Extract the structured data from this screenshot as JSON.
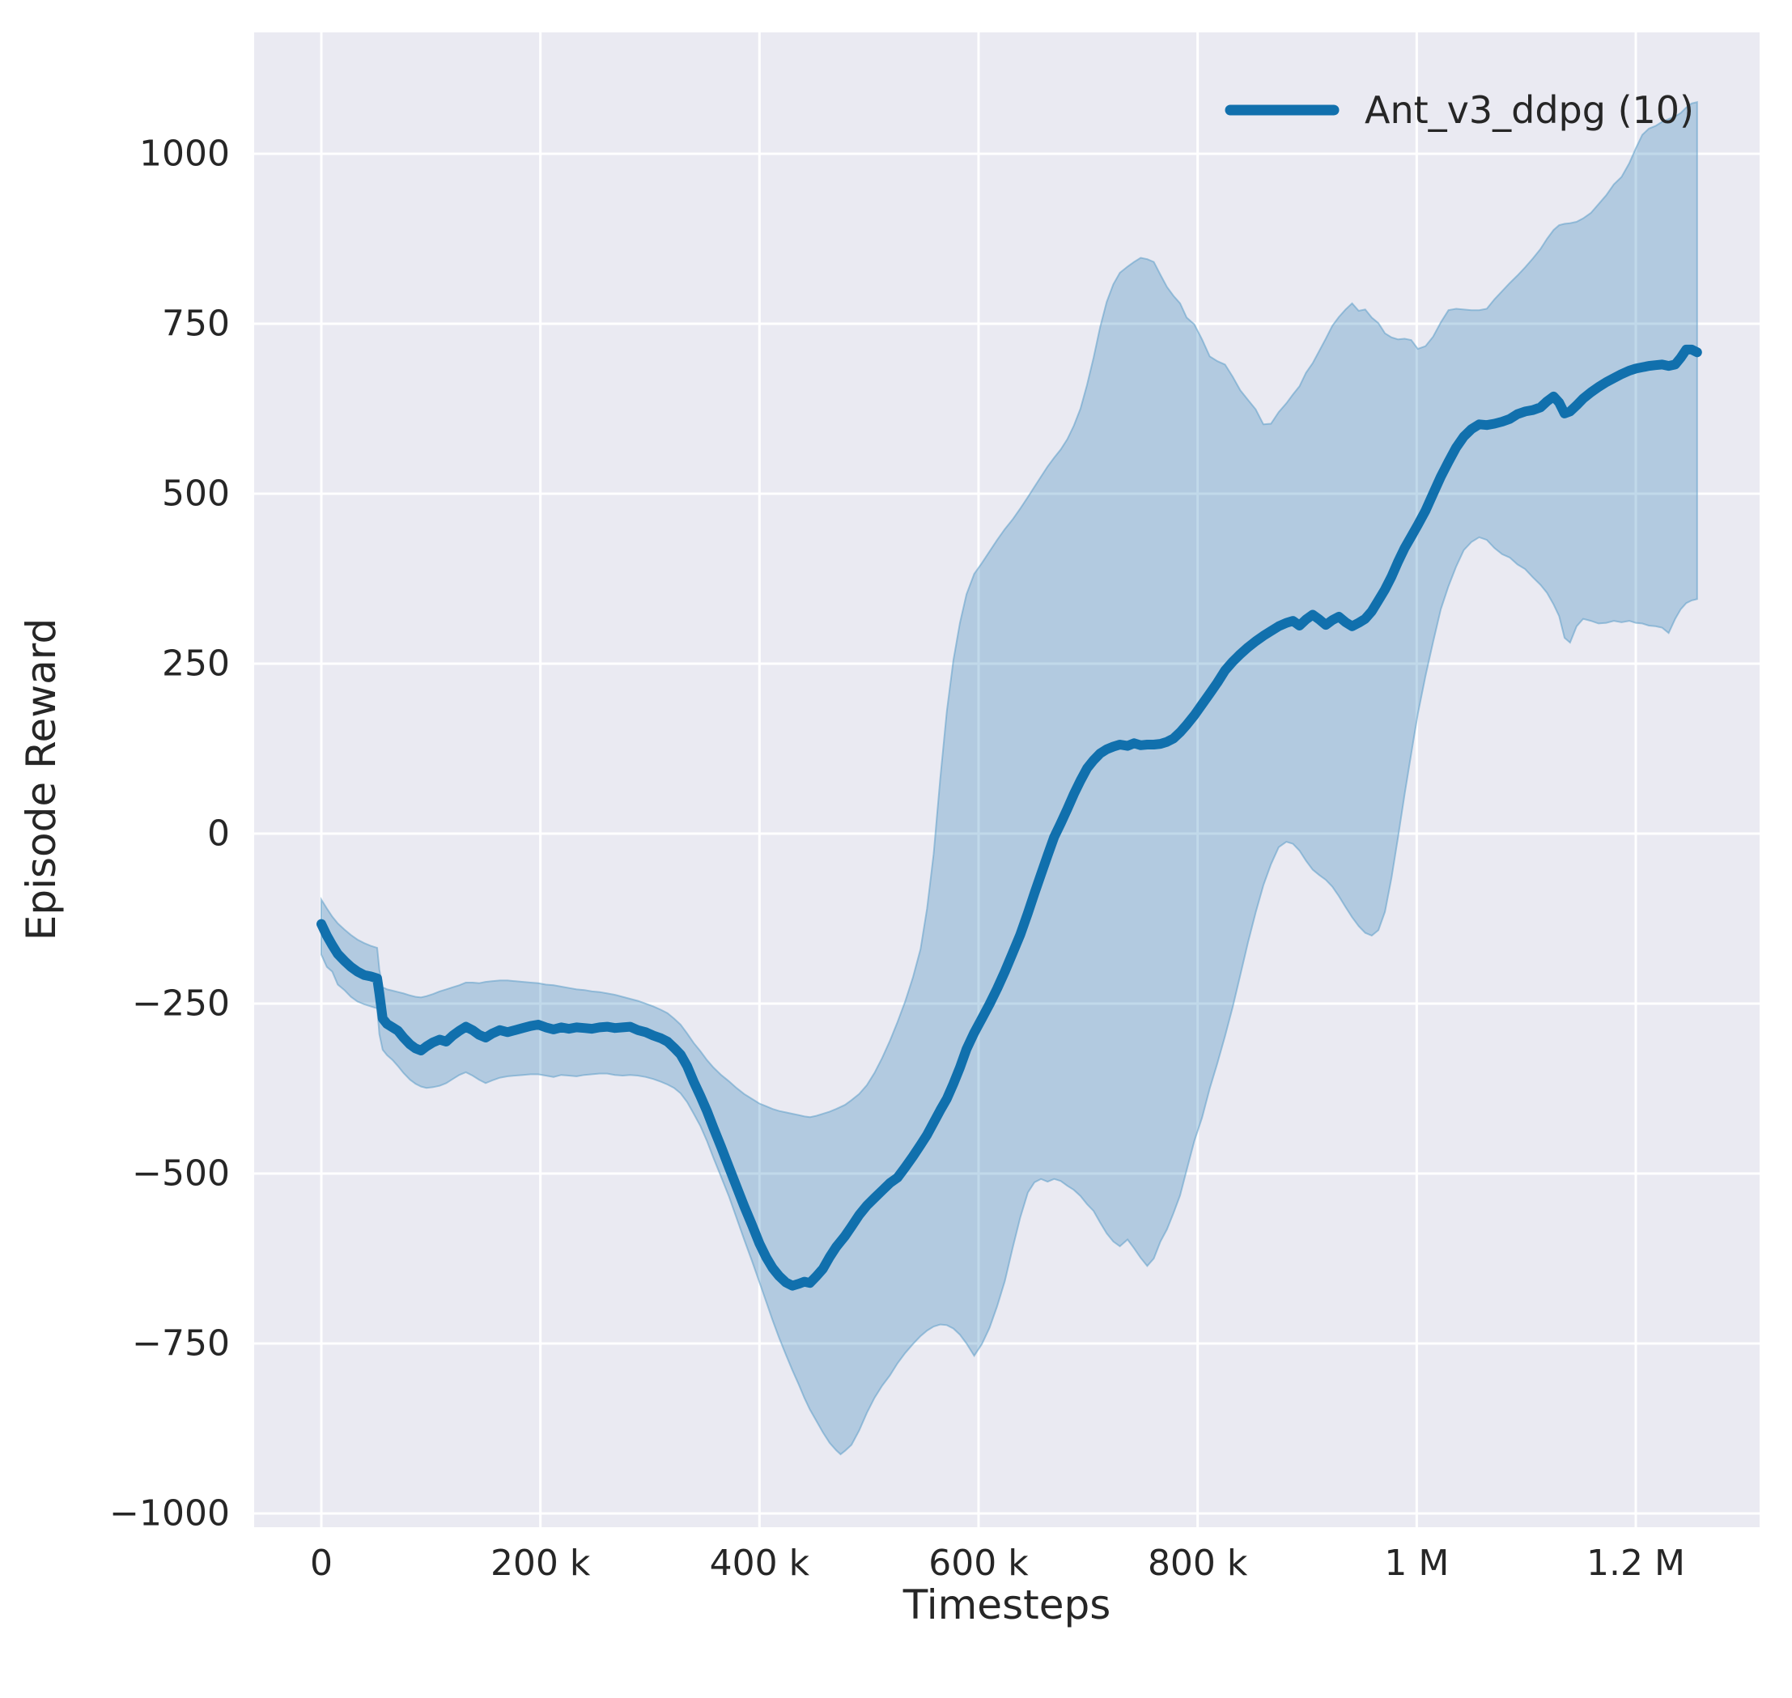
{
  "chart_data": {
    "type": "line",
    "title": "",
    "xlabel": "Timesteps",
    "ylabel": "Episode Reward",
    "legend_label": "Ant_v3_ddpg (10)",
    "legend_position": "upper right",
    "grid": true,
    "xlim_timesteps": [
      -72000,
      1313000
    ],
    "ylim": [
      -1019,
      1177
    ],
    "x_unit": "timesteps (values below are thousands of timesteps)",
    "x_ticks": {
      "values": [
        0,
        200,
        400,
        600,
        800,
        1000,
        1200
      ],
      "labels": [
        "0",
        "200 k",
        "400 k",
        "600 k",
        "800 k",
        "1 M",
        "1.2 M"
      ]
    },
    "y_ticks": {
      "values": [
        1000,
        750,
        500,
        250,
        0,
        -250,
        -500,
        -750,
        -1000
      ],
      "labels": [
        "1000",
        "750",
        "500",
        "250",
        "0",
        "−250",
        "−500",
        "−750",
        "−1000"
      ]
    },
    "series": [
      {
        "name": "Ant_v3_ddpg (10)",
        "x": [
          0,
          5,
          10,
          15,
          21,
          27,
          33,
          39,
          45,
          51,
          53,
          56,
          60,
          65,
          70,
          75,
          81,
          86,
          91,
          96,
          102,
          108,
          114,
          120,
          126,
          132,
          138,
          144,
          150,
          156,
          163,
          170,
          177,
          184,
          191,
          198,
          205,
          212,
          219,
          226,
          233,
          240,
          247,
          254,
          261,
          268,
          275,
          282,
          289,
          296,
          303,
          310,
          316,
          322,
          328,
          334,
          340,
          346,
          352,
          358,
          365,
          372,
          379,
          386,
          393,
          400,
          406,
          412,
          418,
          424,
          430,
          436,
          441,
          446,
          452,
          458,
          464,
          470,
          474,
          478,
          484,
          491,
          498,
          505,
          512,
          519,
          526,
          533,
          540,
          547,
          553,
          559,
          565,
          571,
          577,
          583,
          589,
          596,
          603,
          610,
          617,
          624,
          631,
          638,
          645,
          651,
          657,
          663,
          669,
          675,
          681,
          687,
          693,
          699,
          705,
          711,
          717,
          723,
          729,
          736,
          742,
          748,
          754,
          760,
          766,
          772,
          778,
          784,
          790,
          797,
          804,
          811,
          818,
          825,
          832,
          839,
          846,
          853,
          860,
          867,
          874,
          881,
          887,
          893,
          899,
          905,
          911,
          917,
          923,
          929,
          935,
          941,
          947,
          953,
          959,
          965,
          971,
          977,
          983,
          989,
          995,
          1001,
          1008,
          1015,
          1022,
          1029,
          1036,
          1043,
          1050,
          1057,
          1064,
          1071,
          1078,
          1085,
          1092,
          1099,
          1106,
          1113,
          1119,
          1125,
          1130,
          1135,
          1140,
          1146,
          1152,
          1159,
          1166,
          1173,
          1180,
          1187,
          1194,
          1200,
          1206,
          1212,
          1218,
          1224,
          1230,
          1236,
          1241,
          1246,
          1251,
          1256
        ],
        "mean": [
          -133,
          -150,
          -164,
          -177,
          -187,
          -196,
          -203,
          -208,
          -210,
          -213,
          -235,
          -272,
          -280,
          -285,
          -290,
          -300,
          -310,
          -316,
          -319,
          -313,
          -307,
          -303,
          -306,
          -297,
          -290,
          -284,
          -289,
          -296,
          -300,
          -294,
          -289,
          -292,
          -289,
          -286,
          -283,
          -281,
          -285,
          -288,
          -285,
          -287,
          -285,
          -286,
          -287,
          -285,
          -284,
          -286,
          -285,
          -284,
          -289,
          -292,
          -297,
          -301,
          -306,
          -315,
          -325,
          -342,
          -365,
          -386,
          -408,
          -433,
          -461,
          -490,
          -519,
          -548,
          -575,
          -603,
          -623,
          -639,
          -651,
          -660,
          -665,
          -662,
          -659,
          -661,
          -651,
          -640,
          -623,
          -608,
          -600,
          -592,
          -578,
          -561,
          -547,
          -536,
          -525,
          -514,
          -506,
          -491,
          -475,
          -458,
          -443,
          -425,
          -407,
          -390,
          -368,
          -344,
          -317,
          -293,
          -272,
          -251,
          -228,
          -203,
          -176,
          -149,
          -117,
          -88,
          -60,
          -32,
          -5,
          15,
          36,
          58,
          78,
          96,
          108,
          118,
          124,
          128,
          131,
          129,
          133,
          130,
          131,
          131,
          132,
          135,
          140,
          149,
          160,
          174,
          190,
          206,
          222,
          240,
          253,
          264,
          274,
          283,
          291,
          298,
          305,
          310,
          313,
          306,
          315,
          322,
          315,
          307,
          314,
          319,
          311,
          305,
          310,
          316,
          327,
          343,
          359,
          378,
          400,
          420,
          437,
          454,
          475,
          500,
          525,
          547,
          568,
          584,
          595,
          602,
          601,
          603,
          606,
          610,
          617,
          621,
          623,
          627,
          636,
          643,
          634,
          618,
          621,
          630,
          640,
          649,
          657,
          664,
          670,
          676,
          681,
          684,
          686,
          688,
          689,
          690,
          688,
          690,
          700,
          712,
          712,
          708
        ],
        "band_lower": [
          -178,
          -196,
          -203,
          -222,
          -230,
          -240,
          -247,
          -251,
          -254,
          -257,
          -295,
          -318,
          -326,
          -333,
          -342,
          -352,
          -362,
          -368,
          -372,
          -374,
          -373,
          -371,
          -367,
          -361,
          -355,
          -351,
          -356,
          -362,
          -367,
          -363,
          -359,
          -357,
          -356,
          -355,
          -354,
          -354,
          -356,
          -358,
          -355,
          -356,
          -357,
          -355,
          -354,
          -353,
          -353,
          -355,
          -356,
          -355,
          -356,
          -358,
          -361,
          -365,
          -369,
          -374,
          -382,
          -395,
          -412,
          -430,
          -452,
          -477,
          -505,
          -533,
          -565,
          -597,
          -628,
          -660,
          -688,
          -716,
          -742,
          -766,
          -789,
          -811,
          -830,
          -847,
          -864,
          -881,
          -896,
          -907,
          -913,
          -908,
          -899,
          -878,
          -852,
          -830,
          -812,
          -797,
          -779,
          -764,
          -751,
          -739,
          -731,
          -725,
          -722,
          -723,
          -728,
          -737,
          -750,
          -768,
          -751,
          -727,
          -695,
          -658,
          -610,
          -565,
          -528,
          -513,
          -508,
          -512,
          -508,
          -511,
          -518,
          -524,
          -533,
          -545,
          -555,
          -572,
          -588,
          -600,
          -607,
          -597,
          -610,
          -624,
          -636,
          -625,
          -600,
          -582,
          -558,
          -532,
          -495,
          -452,
          -418,
          -375,
          -338,
          -298,
          -255,
          -208,
          -160,
          -116,
          -76,
          -45,
          -20,
          -12,
          -15,
          -25,
          -40,
          -53,
          -61,
          -68,
          -78,
          -92,
          -108,
          -123,
          -136,
          -146,
          -150,
          -142,
          -115,
          -65,
          -5,
          58,
          118,
          176,
          232,
          282,
          330,
          364,
          393,
          417,
          429,
          436,
          432,
          420,
          411,
          406,
          396,
          389,
          377,
          366,
          354,
          337,
          320,
          288,
          281,
          305,
          316,
          313,
          309,
          310,
          313,
          311,
          313,
          310,
          309,
          306,
          305,
          303,
          295,
          316,
          330,
          339,
          343,
          345
        ],
        "band_upper": [
          -97,
          -110,
          -122,
          -132,
          -141,
          -149,
          -156,
          -161,
          -165,
          -168,
          -200,
          -226,
          -229,
          -231,
          -233,
          -235,
          -238,
          -240,
          -241,
          -239,
          -236,
          -232,
          -229,
          -226,
          -223,
          -219,
          -219,
          -220,
          -218,
          -217,
          -216,
          -216,
          -217,
          -218,
          -219,
          -220,
          -222,
          -223,
          -225,
          -227,
          -229,
          -230,
          -232,
          -233,
          -235,
          -237,
          -240,
          -243,
          -246,
          -250,
          -254,
          -259,
          -264,
          -272,
          -281,
          -294,
          -308,
          -320,
          -333,
          -344,
          -355,
          -364,
          -374,
          -383,
          -390,
          -397,
          -401,
          -405,
          -408,
          -410,
          -412,
          -414,
          -416,
          -417,
          -415,
          -412,
          -409,
          -405,
          -402,
          -399,
          -392,
          -383,
          -370,
          -352,
          -330,
          -305,
          -277,
          -247,
          -212,
          -170,
          -110,
          -30,
          80,
          180,
          255,
          310,
          352,
          382,
          398,
          415,
          432,
          448,
          462,
          478,
          495,
          510,
          525,
          540,
          553,
          565,
          580,
          600,
          625,
          660,
          700,
          745,
          782,
          808,
          825,
          834,
          841,
          847,
          845,
          841,
          822,
          804,
          791,
          780,
          759,
          749,
          727,
          702,
          695,
          690,
          672,
          652,
          638,
          624,
          602,
          603,
          620,
          633,
          646,
          658,
          678,
          692,
          710,
          728,
          747,
          760,
          771,
          780,
          769,
          771,
          759,
          751,
          736,
          730,
          727,
          728,
          726,
          713,
          717,
          731,
          752,
          770,
          772,
          771,
          770,
          770,
          772,
          786,
          798,
          810,
          821,
          833,
          846,
          860,
          875,
          888,
          895,
          897,
          898,
          900,
          905,
          913,
          926,
          939,
          955,
          966,
          986,
          1008,
          1028,
          1037,
          1041,
          1047,
          1051,
          1055,
          1060,
          1068,
          1074,
          1076
        ]
      }
    ],
    "colors": {
      "line": "#1170ad",
      "band_fill": "#1f77b4",
      "band_fill_opacity": 0.28,
      "band_edge": "#5e9ec9",
      "axes_background": "#eaeaf2",
      "gridline": "#ffffff",
      "text": "#262626",
      "figure_background": "#ffffff"
    }
  }
}
